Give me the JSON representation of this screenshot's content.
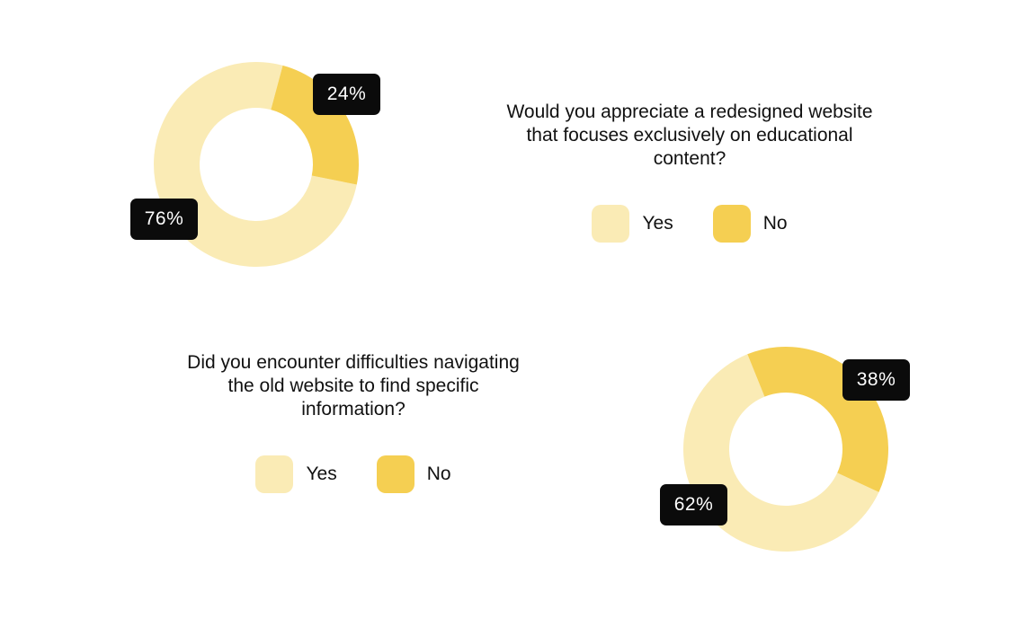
{
  "colors": {
    "yes": "#FAEBB5",
    "no": "#F5CF52",
    "badge_bg": "#0B0B0B",
    "badge_text": "#FFFFFF"
  },
  "chart_data": [
    {
      "type": "pie",
      "donut": true,
      "question": "Would you appreciate a redesigned website that focuses exclusively on educational content?",
      "categories": [
        "Yes",
        "No"
      ],
      "values": [
        76,
        24
      ],
      "labels": [
        "76%",
        "24%"
      ],
      "legend": [
        "Yes",
        "No"
      ]
    },
    {
      "type": "pie",
      "donut": true,
      "question": "Did you encounter difficulties navigating the old website to find specific information?",
      "categories": [
        "Yes",
        "No"
      ],
      "values": [
        62,
        38
      ],
      "labels": [
        "62%",
        "38%"
      ],
      "legend": [
        "Yes",
        "No"
      ]
    }
  ]
}
